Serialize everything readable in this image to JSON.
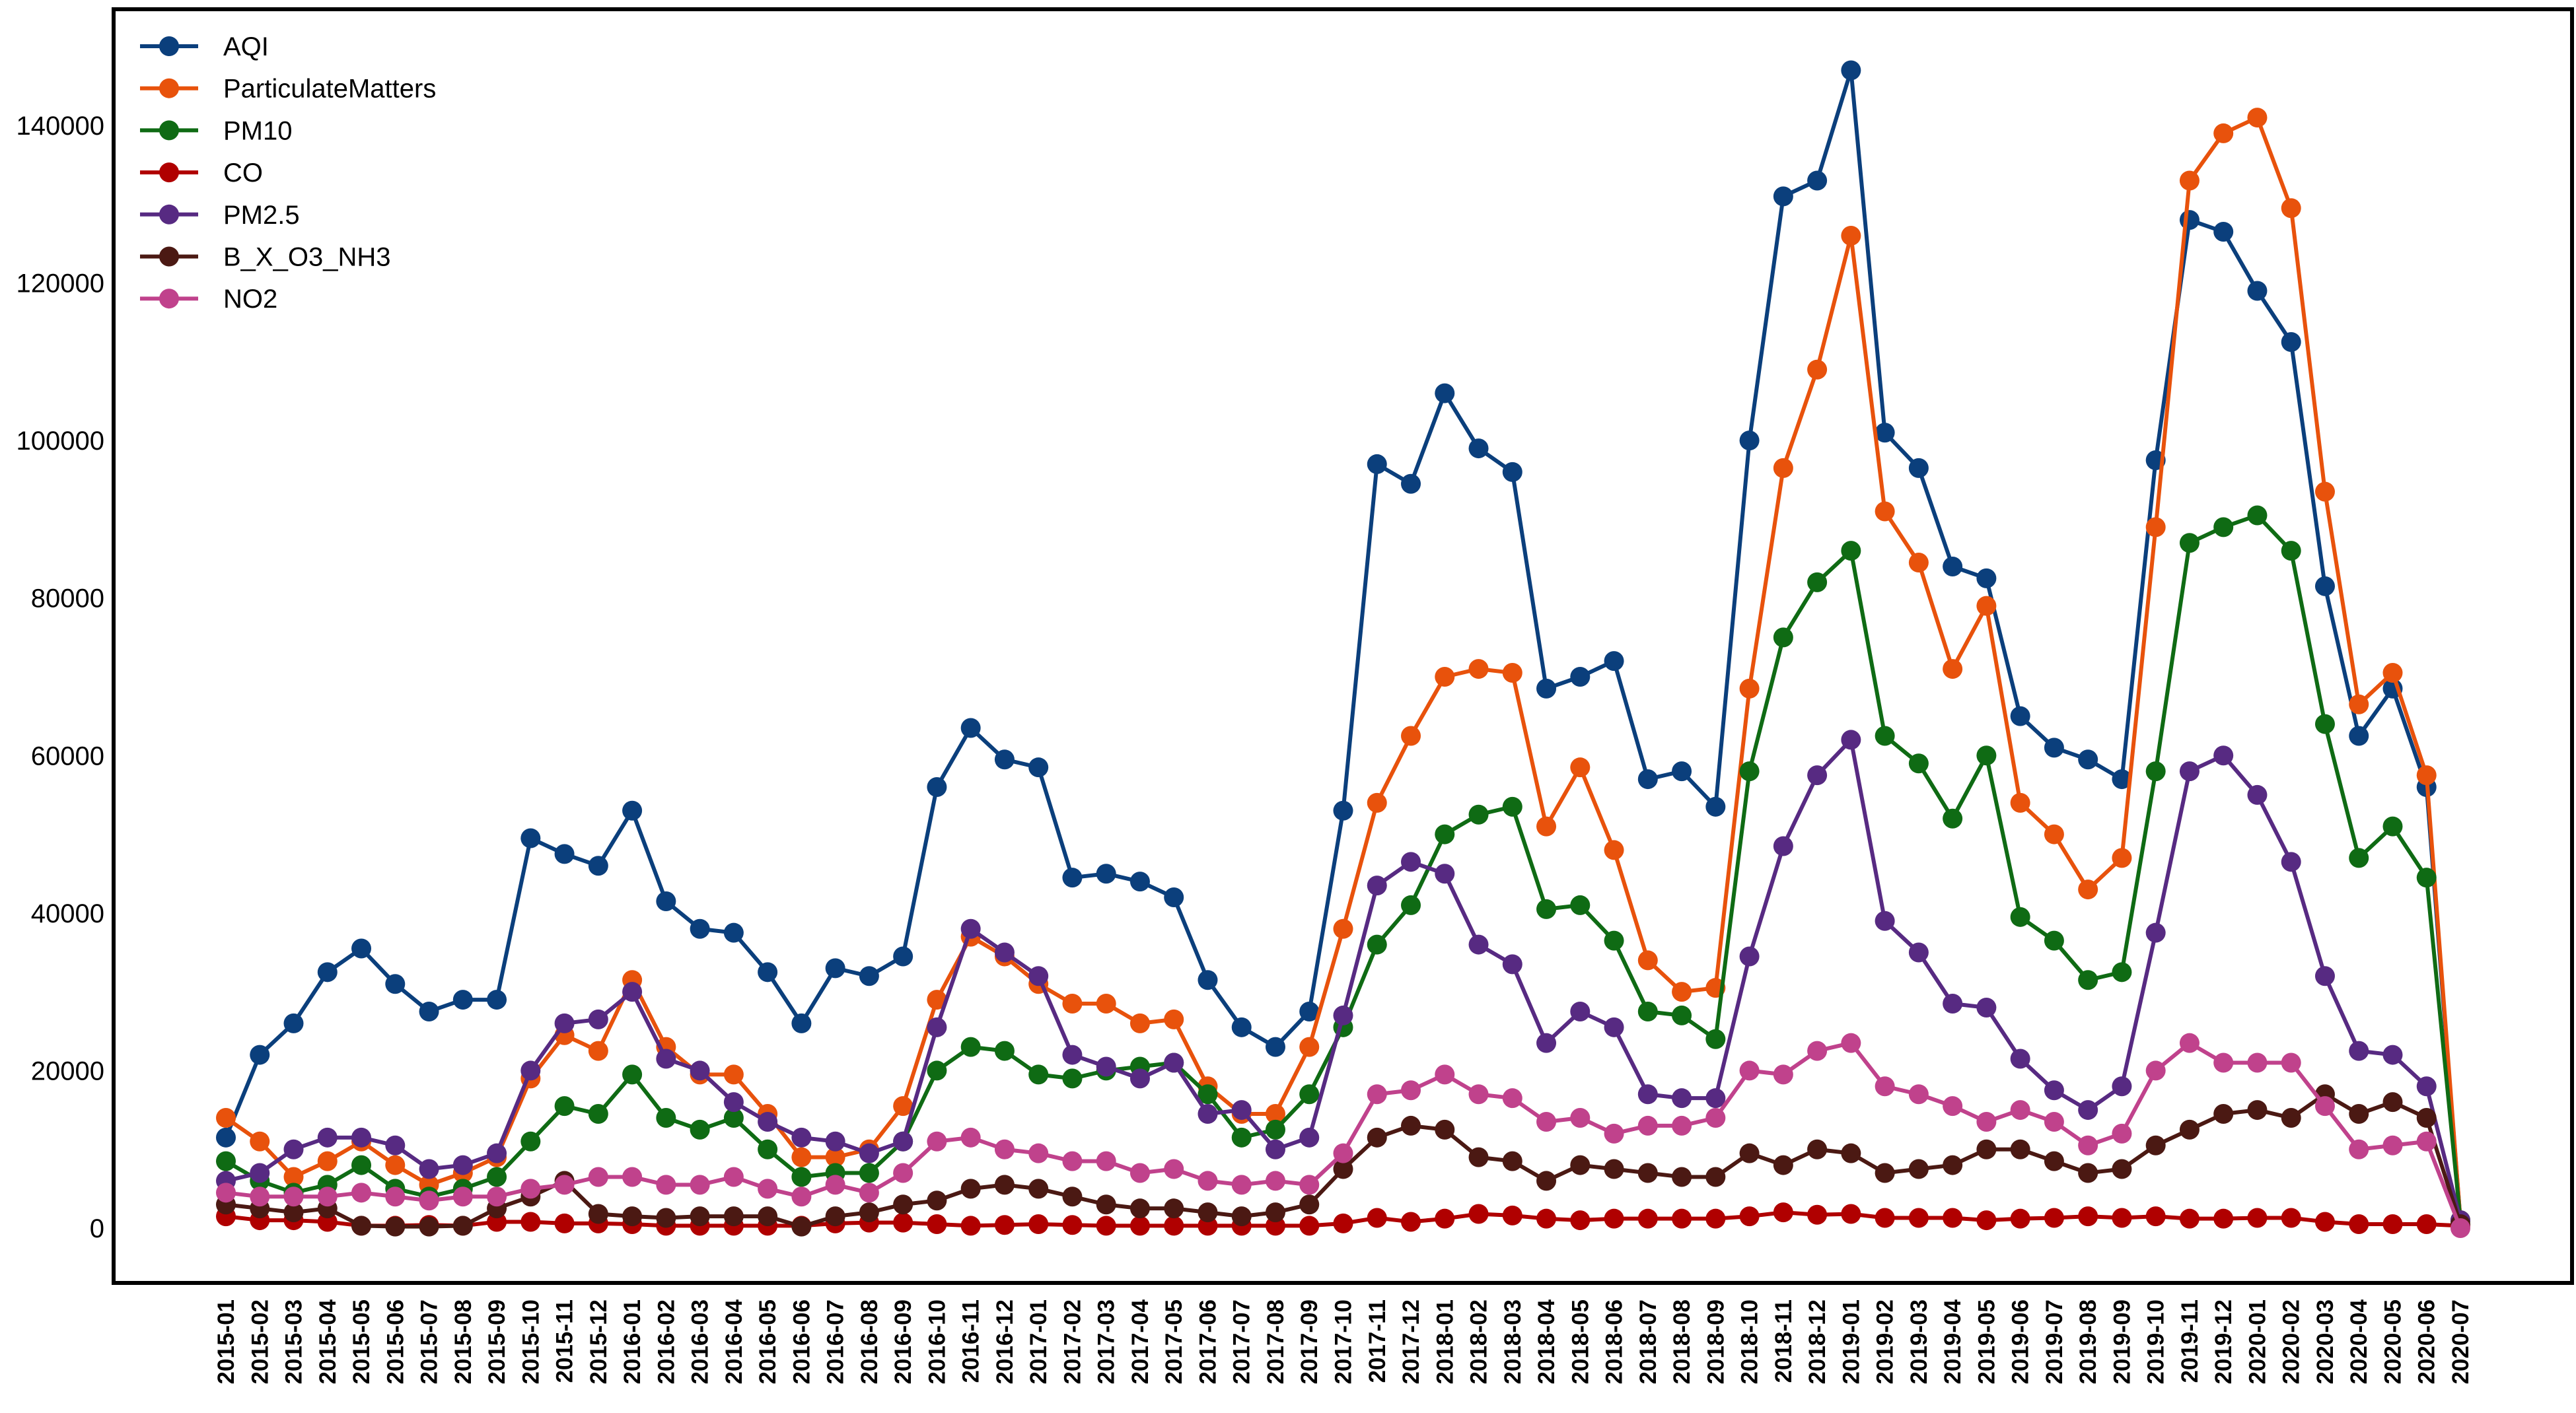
{
  "chart_data": {
    "type": "line",
    "title": "",
    "xlabel": "",
    "ylabel": "",
    "ylim": [
      0,
      150000
    ],
    "yticks": [
      0,
      20000,
      40000,
      60000,
      80000,
      100000,
      120000,
      140000
    ],
    "grid": false,
    "legend_position": "top-left",
    "x": [
      "2015-01",
      "2015-02",
      "2015-03",
      "2015-04",
      "2015-05",
      "2015-06",
      "2015-07",
      "2015-08",
      "2015-09",
      "2015-10",
      "2015-11",
      "2015-12",
      "2016-01",
      "2016-02",
      "2016-03",
      "2016-04",
      "2016-05",
      "2016-06",
      "2016-07",
      "2016-08",
      "2016-09",
      "2016-10",
      "2016-11",
      "2016-12",
      "2017-01",
      "2017-02",
      "2017-03",
      "2017-04",
      "2017-05",
      "2017-06",
      "2017-07",
      "2017-08",
      "2017-09",
      "2017-10",
      "2017-11",
      "2017-12",
      "2018-01",
      "2018-02",
      "2018-03",
      "2018-04",
      "2018-05",
      "2018-06",
      "2018-07",
      "2018-08",
      "2018-09",
      "2018-10",
      "2018-11",
      "2018-12",
      "2019-01",
      "2019-02",
      "2019-03",
      "2019-04",
      "2019-05",
      "2019-06",
      "2019-07",
      "2019-08",
      "2019-09",
      "2019-10",
      "2019-11",
      "2019-12",
      "2020-01",
      "2020-02",
      "2020-03",
      "2020-04",
      "2020-05",
      "2020-06",
      "2020-07"
    ],
    "series": [
      {
        "name": "AQI",
        "color": "#0b3f7c",
        "values": [
          11500,
          22000,
          26000,
          32500,
          35500,
          31000,
          27500,
          29000,
          29000,
          49500,
          47500,
          46000,
          53000,
          41500,
          38000,
          37500,
          32500,
          26000,
          33000,
          32000,
          34500,
          56000,
          63500,
          59500,
          58500,
          44500,
          45000,
          44000,
          42000,
          31500,
          25500,
          23000,
          27500,
          53000,
          97000,
          94500,
          106000,
          99000,
          96000,
          68500,
          70000,
          72000,
          57000,
          58000,
          53500,
          100000,
          131000,
          133000,
          147000,
          101000,
          96500,
          84000,
          82500,
          65000,
          61000,
          59500,
          57000,
          97500,
          128000,
          126500,
          119000,
          112500,
          81500,
          62500,
          68500,
          56000,
          1000
        ]
      },
      {
        "name": "ParticulateMatters",
        "color": "#e8520c",
        "values": [
          14000,
          11000,
          6500,
          8500,
          11000,
          8000,
          5500,
          7000,
          9000,
          19000,
          24500,
          22500,
          31500,
          23000,
          19500,
          19500,
          14500,
          9000,
          9000,
          10000,
          15500,
          29000,
          37000,
          34500,
          31000,
          28500,
          28500,
          26000,
          26500,
          18000,
          14500,
          14500,
          23000,
          38000,
          54000,
          62500,
          70000,
          71000,
          70500,
          51000,
          58500,
          48000,
          34000,
          30000,
          30500,
          68500,
          96500,
          109000,
          126000,
          91000,
          84500,
          71000,
          79000,
          54000,
          50000,
          43000,
          47000,
          89000,
          133000,
          139000,
          141000,
          129500,
          93500,
          66500,
          70500,
          57500,
          1000
        ]
      },
      {
        "name": "PM10",
        "color": "#0f6b14",
        "values": [
          8500,
          6000,
          4500,
          5500,
          8000,
          5000,
          4000,
          5000,
          6500,
          11000,
          15500,
          14500,
          19500,
          14000,
          12500,
          14000,
          10000,
          6500,
          7000,
          7000,
          11000,
          20000,
          23000,
          22500,
          19500,
          19000,
          20000,
          20500,
          21000,
          17000,
          11500,
          12500,
          17000,
          25500,
          36000,
          41000,
          50000,
          52500,
          53500,
          40500,
          41000,
          36500,
          27500,
          27000,
          24000,
          58000,
          75000,
          82000,
          86000,
          62500,
          59000,
          52000,
          60000,
          39500,
          36500,
          31500,
          32500,
          58000,
          87000,
          89000,
          90500,
          86000,
          64000,
          47000,
          51000,
          44500,
          1000
        ]
      },
      {
        "name": "CO",
        "color": "#b00000",
        "values": [
          1500,
          1000,
          1000,
          800,
          300,
          300,
          400,
          300,
          800,
          800,
          600,
          600,
          500,
          300,
          300,
          300,
          300,
          300,
          600,
          700,
          700,
          500,
          300,
          400,
          500,
          400,
          300,
          300,
          300,
          300,
          300,
          300,
          300,
          600,
          1300,
          800,
          1200,
          1800,
          1600,
          1200,
          1000,
          1200,
          1200,
          1200,
          1200,
          1500,
          2000,
          1700,
          1800,
          1300,
          1300,
          1300,
          1000,
          1200,
          1300,
          1500,
          1300,
          1500,
          1200,
          1200,
          1300,
          1300,
          800,
          500,
          500,
          500,
          300
        ]
      },
      {
        "name": "PM2.5",
        "color": "#572a82",
        "values": [
          6000,
          7000,
          10000,
          11500,
          11500,
          10500,
          7500,
          8000,
          9500,
          20000,
          26000,
          26500,
          30000,
          21500,
          20000,
          16000,
          13500,
          11500,
          11000,
          9500,
          11000,
          25500,
          38000,
          35000,
          32000,
          22000,
          20500,
          19000,
          21000,
          14500,
          15000,
          10000,
          11500,
          27000,
          43500,
          46500,
          45000,
          36000,
          33500,
          23500,
          27500,
          25500,
          17000,
          16500,
          16500,
          34500,
          48500,
          57500,
          62000,
          39000,
          35000,
          28500,
          28000,
          21500,
          17500,
          15000,
          18000,
          37500,
          58000,
          60000,
          55000,
          46500,
          32000,
          22500,
          22000,
          18000,
          1000
        ]
      },
      {
        "name": "B_X_O3_NH3",
        "color": "#4b1913",
        "values": [
          3000,
          2500,
          2000,
          2500,
          300,
          200,
          200,
          300,
          2500,
          4000,
          6000,
          1800,
          1500,
          1300,
          1500,
          1500,
          1500,
          200,
          1500,
          2000,
          3000,
          3500,
          5000,
          5500,
          5000,
          4000,
          3000,
          2500,
          2500,
          2000,
          1500,
          2000,
          3000,
          7500,
          11500,
          13000,
          12500,
          9000,
          8500,
          6000,
          8000,
          7500,
          7000,
          6500,
          6500,
          9500,
          8000,
          10000,
          9500,
          7000,
          7500,
          8000,
          10000,
          10000,
          8500,
          7000,
          7500,
          10500,
          12500,
          14500,
          15000,
          14000,
          17000,
          14500,
          16000,
          14000,
          500
        ]
      },
      {
        "name": "NO2",
        "color": "#c0428c",
        "values": [
          4500,
          4000,
          4000,
          4000,
          4500,
          4000,
          3500,
          4000,
          4000,
          5000,
          5500,
          6500,
          6500,
          5500,
          5500,
          6500,
          5000,
          4000,
          5500,
          4500,
          7000,
          11000,
          11500,
          10000,
          9500,
          8500,
          8500,
          7000,
          7500,
          6000,
          5500,
          6000,
          5500,
          9500,
          17000,
          17500,
          19500,
          17000,
          16500,
          13500,
          14000,
          12000,
          13000,
          13000,
          14000,
          20000,
          19500,
          22500,
          23500,
          18000,
          17000,
          15500,
          13500,
          15000,
          13500,
          10500,
          12000,
          20000,
          23500,
          21000,
          21000,
          21000,
          15500,
          10000,
          10500,
          11000,
          0
        ]
      }
    ]
  }
}
